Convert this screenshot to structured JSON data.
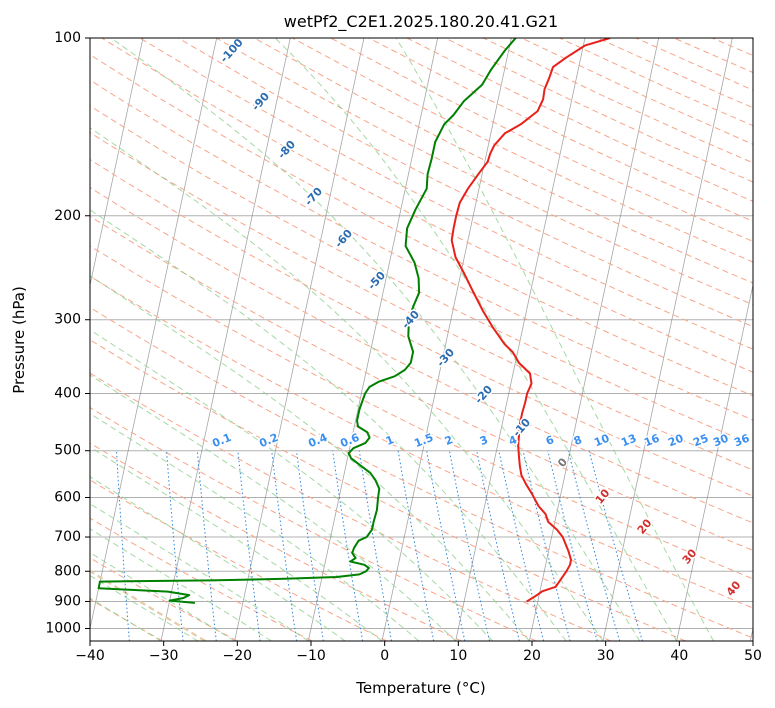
{
  "chart_data": {
    "type": "line",
    "title": "wetPf2_C2E1.2025.180.20.41.G21",
    "xlabel": "Temperature (°C)",
    "ylabel": "Pressure (hPa)",
    "xlim": [
      -40,
      50
    ],
    "ylim": [
      1050,
      100
    ],
    "y_scale": "log",
    "grid": true,
    "x_ticks": [
      "−40",
      "−30",
      "−20",
      "−10",
      "0",
      "10",
      "20",
      "30",
      "40",
      "50"
    ],
    "y_ticks": [
      "100",
      "200",
      "300",
      "400",
      "500",
      "600",
      "700",
      "800",
      "900",
      "1000"
    ],
    "series": [
      {
        "color": "#e8201a",
        "points": [
          [
            18.5,
            900
          ],
          [
            19.6,
            880
          ],
          [
            20.3,
            865
          ],
          [
            22.0,
            850
          ],
          [
            22.4,
            830
          ],
          [
            23.0,
            800
          ],
          [
            23.3,
            780
          ],
          [
            23.3,
            765
          ],
          [
            22.7,
            740
          ],
          [
            21.5,
            700
          ],
          [
            20.5,
            680
          ],
          [
            19.1,
            660
          ],
          [
            18.5,
            640
          ],
          [
            17.3,
            620
          ],
          [
            16.0,
            590
          ],
          [
            15.0,
            570
          ],
          [
            14.1,
            550
          ],
          [
            13.6,
            530
          ],
          [
            13.2,
            510
          ],
          [
            12.8,
            490
          ],
          [
            12.6,
            470
          ],
          [
            12.4,
            450
          ],
          [
            12.4,
            430
          ],
          [
            12.5,
            415
          ],
          [
            12.5,
            400
          ],
          [
            12.8,
            385
          ],
          [
            12.3,
            370
          ],
          [
            10.5,
            355
          ],
          [
            9.3,
            340
          ],
          [
            8.0,
            330
          ],
          [
            6.0,
            310
          ],
          [
            4.1,
            290
          ],
          [
            2.3,
            270
          ],
          [
            0.4,
            250
          ],
          [
            -1.2,
            235
          ],
          [
            -2.2,
            220
          ],
          [
            -2.3,
            210
          ],
          [
            -2.3,
            200
          ],
          [
            -2.2,
            190
          ],
          [
            -1.5,
            180
          ],
          [
            -0.5,
            170
          ],
          [
            0.4,
            162
          ],
          [
            0.5,
            157
          ],
          [
            0.8,
            152
          ],
          [
            1.9,
            145
          ],
          [
            3.8,
            140
          ],
          [
            5.7,
            133
          ],
          [
            6.1,
            127
          ],
          [
            6.0,
            122
          ],
          [
            6.3,
            117
          ],
          [
            6.5,
            112
          ],
          [
            8.0,
            108
          ],
          [
            10.2,
            103
          ],
          [
            13.4,
            100
          ]
        ],
        "values": [
          18.5,
          19.6,
          20.3,
          22.0,
          22.4,
          23.0,
          23.3,
          23.3,
          22.7,
          21.5,
          20.5,
          19.1,
          18.5,
          17.3,
          16.0,
          15.0,
          14.1,
          13.6,
          13.2,
          12.8,
          12.6,
          12.4,
          12.4,
          12.5,
          12.5,
          12.8,
          12.3,
          10.5,
          9.3,
          8.0,
          6.0,
          4.1,
          2.3,
          0.4,
          -1.2,
          -2.2,
          -2.3,
          -2.3,
          -2.2,
          -1.5,
          -0.5,
          0.4,
          0.5,
          0.8,
          1.9,
          3.8,
          5.7,
          6.1,
          6.0,
          6.3,
          6.5,
          8.0,
          10.2,
          13.4
        ]
      },
      {
        "color": "#008000",
        "points": [
          [
            -26.5,
            905
          ],
          [
            -30.0,
            897
          ],
          [
            -28.2,
            888
          ],
          [
            -27.5,
            878
          ],
          [
            -30.5,
            866
          ],
          [
            -40,
            855
          ],
          [
            -40,
            833
          ],
          [
            -25.0,
            829
          ],
          [
            -15.0,
            824
          ],
          [
            -8.0,
            818
          ],
          [
            -5.0,
            810
          ],
          [
            -4.2,
            800
          ],
          [
            -3.9,
            790
          ],
          [
            -4.6,
            780
          ],
          [
            -6.6,
            770
          ],
          [
            -6.0,
            760
          ],
          [
            -6.6,
            745
          ],
          [
            -6.5,
            730
          ],
          [
            -6.1,
            710
          ],
          [
            -5.1,
            700
          ],
          [
            -4.6,
            680
          ],
          [
            -4.6,
            660
          ],
          [
            -4.5,
            630
          ],
          [
            -4.7,
            600
          ],
          [
            -4.8,
            580
          ],
          [
            -5.6,
            560
          ],
          [
            -6.5,
            545
          ],
          [
            -8.0,
            530
          ],
          [
            -9.5,
            515
          ],
          [
            -10.0,
            505
          ],
          [
            -9.5,
            495
          ],
          [
            -8.0,
            485
          ],
          [
            -7.6,
            475
          ],
          [
            -8.1,
            465
          ],
          [
            -9.5,
            455
          ],
          [
            -9.8,
            445
          ],
          [
            -9.8,
            425
          ],
          [
            -9.5,
            400
          ],
          [
            -9.1,
            390
          ],
          [
            -8.0,
            382
          ],
          [
            -6.0,
            374
          ],
          [
            -4.8,
            365
          ],
          [
            -4.2,
            355
          ],
          [
            -4.2,
            340
          ],
          [
            -5.3,
            320
          ],
          [
            -5.7,
            300
          ],
          [
            -5.5,
            285
          ],
          [
            -5.1,
            270
          ],
          [
            -5.6,
            255
          ],
          [
            -6.6,
            240
          ],
          [
            -8.3,
            225
          ],
          [
            -8.6,
            210
          ],
          [
            -8.0,
            195
          ],
          [
            -7.1,
            180
          ],
          [
            -7.4,
            170
          ],
          [
            -7.3,
            160
          ],
          [
            -7.3,
            150
          ],
          [
            -6.6,
            140
          ],
          [
            -5.6,
            135
          ],
          [
            -4.6,
            128
          ],
          [
            -2.6,
            120
          ],
          [
            -1.8,
            113
          ],
          [
            -0.5,
            105
          ],
          [
            0.6,
            100
          ]
        ],
        "values": [
          -26.5,
          -30.0,
          -28.2,
          -27.5,
          -30.5,
          -40,
          -40,
          -25.0,
          -15.0,
          -8.0,
          -5.0,
          -4.2,
          -3.9,
          -4.6,
          -6.6,
          -6.0,
          -6.6,
          -6.5,
          -6.1,
          -5.1,
          -4.6,
          -4.6,
          -4.5,
          -4.7,
          -4.8,
          -5.6,
          -6.5,
          -8.0,
          -9.5,
          -10.0,
          -9.5,
          -8.0,
          -7.6,
          -8.1,
          -9.5,
          -9.8,
          -9.8,
          -9.5,
          -9.1,
          -8.0,
          -6.0,
          -4.8,
          -4.2,
          -4.2,
          -5.3,
          -5.7,
          -5.5,
          -5.1,
          -5.6,
          -6.6,
          -8.3,
          -8.6,
          -8.0,
          -7.1,
          -7.4,
          -7.3,
          -7.3,
          -6.6,
          -5.6,
          -4.6,
          -2.6,
          -1.8,
          -0.5,
          0.6
        ]
      }
    ],
    "colors": {
      "isotherm": "#777777",
      "dry_adiabat": "#f7a58a",
      "moist_adiabat": "#8fd08f",
      "mixing_ratio": "#2e86de",
      "dry_label": "#2b6cb0",
      "mixing_label": "#3b8ff0",
      "moist_label_warm": "#d32f2f",
      "moist_label_zero": "#777777",
      "wetbulb_zero": "#e6cba8"
    },
    "dry_adiabat_labels": [
      "-100",
      "-90",
      "-80",
      "-70",
      "-60",
      "-50",
      "-40",
      "-30",
      "-20",
      "-10"
    ],
    "mixing_ratio_labels": [
      "0.1",
      "0.2",
      "0.4",
      "0.6",
      "1",
      "1.5",
      "2",
      "3",
      "4",
      "6",
      "8",
      "10",
      "13",
      "16",
      "20",
      "25",
      "30",
      "36"
    ],
    "moist_adiabat_labels": [
      "0",
      "10",
      "20",
      "30",
      "40"
    ]
  }
}
